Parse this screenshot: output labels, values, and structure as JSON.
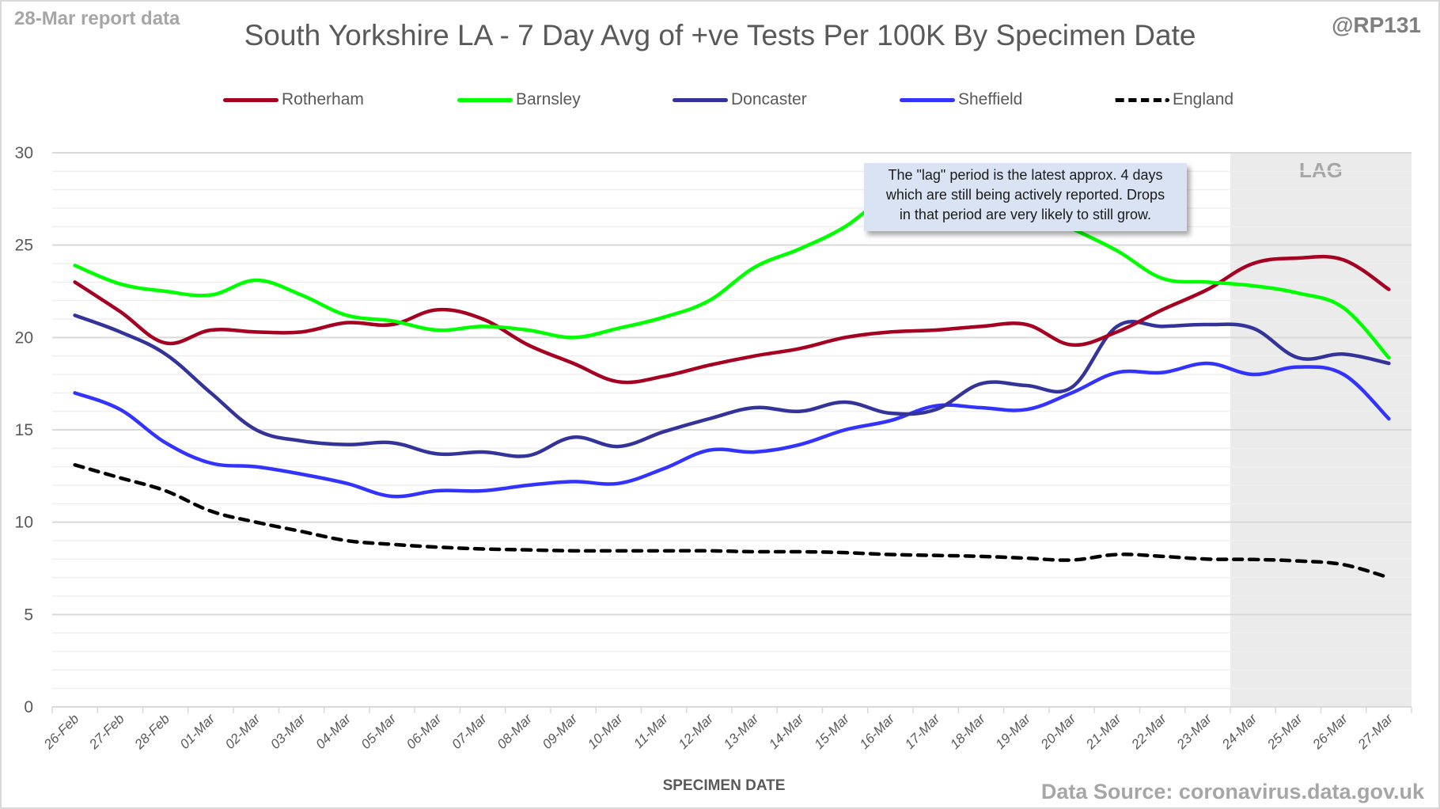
{
  "header": {
    "report_date": "28-Mar report data",
    "handle": "@RP131",
    "source": "Data Source: coronavirus.data.gov.uk"
  },
  "annotation": {
    "lines": [
      "The \"lag\" period is the latest approx. 4 days",
      "which are still being actively reported.  Drops",
      "in that period are very likely to still grow."
    ],
    "background": "#dae3f3"
  },
  "chart_data": {
    "type": "line",
    "title": "South Yorkshire LA - 7 Day Avg of +ve Tests Per 100K By Specimen Date",
    "xlabel": "SPECIMEN DATE",
    "ylabel": "",
    "ylim": [
      0,
      30
    ],
    "yticks": [
      0,
      5,
      10,
      15,
      20,
      25,
      30
    ],
    "grid": "horizontal major and minor",
    "legend": "top",
    "lag_label": "LAG",
    "lag_start": "24-Mar",
    "lag_color": "#ebebeb",
    "categories": [
      "26-Feb",
      "27-Feb",
      "28-Feb",
      "01-Mar",
      "02-Mar",
      "03-Mar",
      "04-Mar",
      "05-Mar",
      "06-Mar",
      "07-Mar",
      "08-Mar",
      "09-Mar",
      "10-Mar",
      "11-Mar",
      "12-Mar",
      "13-Mar",
      "14-Mar",
      "15-Mar",
      "16-Mar",
      "17-Mar",
      "18-Mar",
      "19-Mar",
      "20-Mar",
      "21-Mar",
      "22-Mar",
      "23-Mar",
      "24-Mar",
      "25-Mar",
      "26-Mar",
      "27-Mar"
    ],
    "series": [
      {
        "name": "Rotherham",
        "color": "#a50021",
        "dashed": false,
        "values": [
          23.0,
          21.4,
          19.7,
          20.4,
          20.3,
          20.3,
          20.8,
          20.7,
          21.5,
          21.0,
          19.6,
          18.6,
          17.6,
          17.9,
          18.5,
          19.0,
          19.4,
          20.0,
          20.3,
          20.4,
          20.6,
          20.7,
          19.6,
          20.3,
          21.5,
          22.6,
          24.0,
          24.3,
          24.2,
          22.6
        ]
      },
      {
        "name": "Barnsley",
        "color": "#00ff00",
        "dashed": false,
        "values": [
          23.9,
          22.9,
          22.5,
          22.3,
          23.1,
          22.3,
          21.2,
          20.9,
          20.4,
          20.6,
          20.4,
          20.0,
          20.5,
          21.1,
          22.0,
          23.8,
          24.8,
          26.0,
          27.8,
          28.6,
          28.2,
          27.0,
          25.9,
          24.7,
          23.2,
          23.0,
          22.8,
          22.4,
          21.6,
          18.9
        ]
      },
      {
        "name": "Doncaster",
        "color": "#333399",
        "dashed": false,
        "values": [
          21.2,
          20.3,
          19.1,
          17.0,
          15.0,
          14.4,
          14.2,
          14.3,
          13.7,
          13.8,
          13.6,
          14.6,
          14.1,
          14.9,
          15.6,
          16.2,
          16.0,
          16.5,
          15.9,
          16.1,
          17.5,
          17.4,
          17.3,
          20.6,
          20.6,
          20.7,
          20.5,
          18.9,
          19.1,
          18.6
        ]
      },
      {
        "name": "Sheffield",
        "color": "#3333ff",
        "dashed": false,
        "values": [
          17.0,
          16.1,
          14.3,
          13.2,
          13.0,
          12.6,
          12.1,
          11.4,
          11.7,
          11.7,
          12.0,
          12.2,
          12.1,
          12.9,
          13.9,
          13.8,
          14.2,
          15.0,
          15.5,
          16.3,
          16.2,
          16.1,
          17.0,
          18.1,
          18.1,
          18.6,
          18.0,
          18.4,
          18.0,
          15.6
        ]
      },
      {
        "name": "England",
        "color": "#000000",
        "dashed": true,
        "values": [
          13.1,
          12.4,
          11.7,
          10.6,
          10.0,
          9.5,
          9.0,
          8.8,
          8.65,
          8.55,
          8.5,
          8.45,
          8.45,
          8.45,
          8.45,
          8.4,
          8.4,
          8.35,
          8.25,
          8.2,
          8.15,
          8.05,
          7.95,
          8.25,
          8.15,
          8.0,
          7.98,
          7.9,
          7.7,
          7.0
        ]
      }
    ]
  }
}
